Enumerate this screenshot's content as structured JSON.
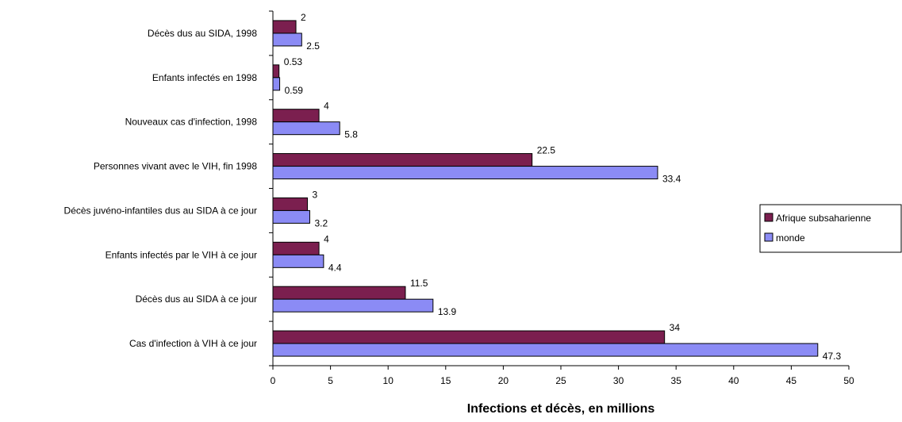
{
  "chart_data": {
    "type": "bar",
    "orientation": "horizontal",
    "categories": [
      "Décès dus au SIDA, 1998",
      "Enfants infectés en 1998",
      "Nouveaux cas d'infection, 1998",
      "Personnes vivant avec le VIH, fin 1998",
      "Décès juvéno-infantiles dus au SIDA à ce jour",
      "Enfants infectés par le VIH à ce jour",
      "Décès dus au SIDA  à ce jour",
      "Cas d'infection à VIH à ce jour"
    ],
    "series": [
      {
        "name": "Afrique subsaharienne",
        "color": "#7b1f4f",
        "values": [
          2,
          0.53,
          4,
          22.5,
          3,
          4,
          11.5,
          34
        ],
        "labels": [
          "2",
          "0.53",
          "4",
          "22.5",
          "3",
          "4",
          "11.5",
          "34"
        ]
      },
      {
        "name": "monde",
        "color": "#8b8bf5",
        "values": [
          2.5,
          0.59,
          5.8,
          33.4,
          3.2,
          4.4,
          13.9,
          47.3
        ],
        "labels": [
          "2.5",
          "0.59",
          "5.8",
          "33.4",
          "3.2",
          "4.4",
          "13.9",
          "47.3"
        ]
      }
    ],
    "xlabel": "Infections et décès, en millions",
    "ylabel": "",
    "title": "",
    "xlim": [
      0,
      50
    ],
    "xticks": [
      "0",
      "5",
      "10",
      "15",
      "20",
      "25",
      "30",
      "35",
      "40",
      "45",
      "50"
    ],
    "grid": false,
    "legend_position": "right"
  }
}
